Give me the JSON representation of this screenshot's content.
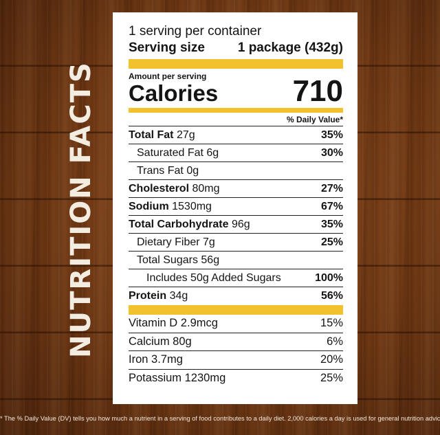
{
  "side_title": "NUTRITION FACTS",
  "label": {
    "servings_per_container": "1 serving per container",
    "serving_size_label": "Serving size",
    "serving_size_value": "1 package (432g)",
    "amount_per_serving": "Amount per serving",
    "calories_label": "Calories",
    "calories_value": "710",
    "dv_header": "% Daily Value*",
    "nutrients": [
      {
        "name": "Total Fat",
        "amount": "27g",
        "dv": "35%"
      },
      {
        "name": "Saturated Fat",
        "amount": "6g",
        "dv": "30%"
      },
      {
        "name": "Trans Fat",
        "amount": "0g",
        "dv": ""
      },
      {
        "name": "Cholesterol",
        "amount": "80mg",
        "dv": "27%"
      },
      {
        "name": "Sodium",
        "amount": "1530mg",
        "dv": "67%"
      },
      {
        "name": "Total Carbohydrate",
        "amount": "96g",
        "dv": "35%"
      },
      {
        "name": "Dietary Fiber",
        "amount": "7g",
        "dv": "25%"
      },
      {
        "name": "Total Sugars",
        "amount": "56g",
        "dv": ""
      },
      {
        "name": "Includes 50g Added Sugars",
        "amount": "",
        "dv": "100%"
      },
      {
        "name": "Protein",
        "amount": "34g",
        "dv": "56%"
      }
    ],
    "vitamins": [
      {
        "name": "Vitamin D 2.9mcg",
        "dv": "15%"
      },
      {
        "name": "Calcium 80g",
        "dv": "6%"
      },
      {
        "name": "Iron 3.7mg",
        "dv": "20%"
      },
      {
        "name": "Potassium 1230mg",
        "dv": "25%"
      }
    ]
  },
  "footnote": "* The % Daily Value (DV) tells you how much a nutrient in a serving of food contributes to a daily diet. 2,000 calories a day is used for general nutrition advice.",
  "colors": {
    "accent_bar": "#f2c12e",
    "wood": "#6e3612",
    "label_bg": "#ffffff"
  }
}
